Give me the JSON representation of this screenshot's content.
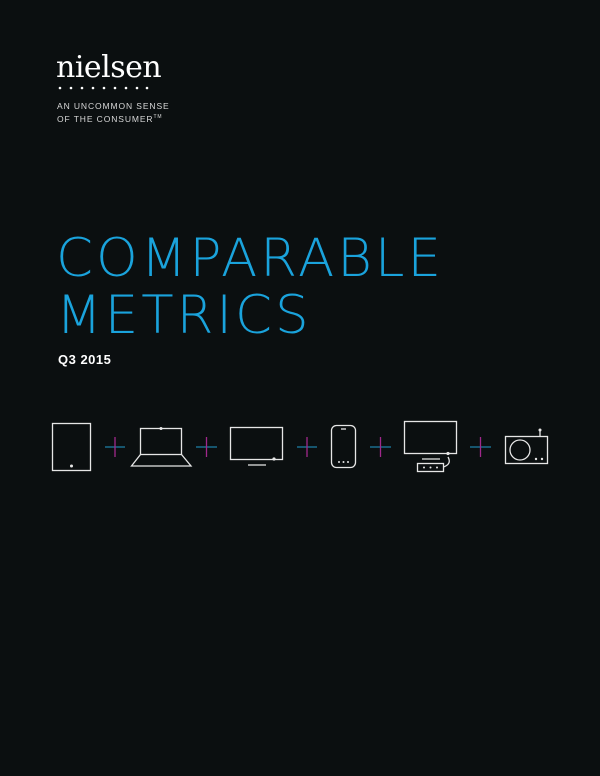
{
  "logo": {
    "text": "nielsen"
  },
  "tagline": {
    "line1": "AN UNCOMMON SENSE",
    "line2": "OF THE CONSUMER",
    "tm": "TM"
  },
  "title": {
    "line1": "COMPARABLE",
    "line2": "METRICS"
  },
  "period": "Q3 2015",
  "icons": [
    "tablet-icon",
    "laptop-icon",
    "tv-icon",
    "smartphone-icon",
    "tv-set-top-box-icon",
    "radio-icon"
  ],
  "colors": {
    "background": "#0b0f10",
    "title": "#1aa3dc",
    "plus_horizontal": "#1c7fa6",
    "plus_vertical": "#a0288c"
  }
}
